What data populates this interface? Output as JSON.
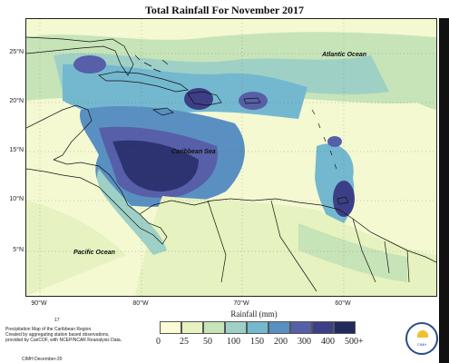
{
  "title": "Total Rainfall For November 2017",
  "y_axis_labels": [
    "25°N",
    "20°N",
    "15°N",
    "10°N",
    "5°N"
  ],
  "x_axis_labels": [
    "90°W",
    "80°W",
    "70°W",
    "60°W"
  ],
  "ocean_labels": {
    "atlantic": "Atlantic Ocean",
    "caribbean": "Caribbean Sea",
    "pacific": "Pacific Ocean"
  },
  "legend": {
    "title": "Rainfall (mm)",
    "ticks": [
      "0",
      "25",
      "50",
      "100",
      "150",
      "200",
      "300",
      "400",
      "500+"
    ],
    "colors": [
      "#fbfcd6",
      "#e6f2bf",
      "#c6e4b8",
      "#9fd0c6",
      "#74b8cf",
      "#5a8fc2",
      "#565fa8",
      "#3c3f87",
      "#222a5c"
    ]
  },
  "footnote": {
    "line1": "Precipitation Map of the Caribbean Region.",
    "line2": "Created by aggregating station based observations,",
    "line3": "provided by CariCOF, with NCEP/NCAR Reanalysis Data.",
    "marker": "17",
    "credit": "CIMH December-20"
  },
  "logo": {
    "text": "CIMH"
  },
  "colors": {
    "land_outline": "#111111",
    "frame": "#222222"
  }
}
